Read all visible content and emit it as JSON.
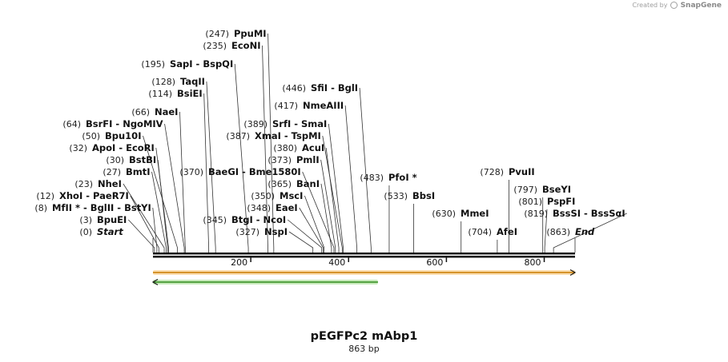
{
  "credit": {
    "prefix": "Created by",
    "brand": "SnapGene"
  },
  "map": {
    "title": "pEGFPc2 mAbp1",
    "subtitle": "863 bp",
    "length": 863,
    "scale_ticks": [
      {
        "value": 200,
        "label": "200"
      },
      {
        "value": 400,
        "label": "400"
      },
      {
        "value": 600,
        "label": "600"
      },
      {
        "value": 800,
        "label": "800"
      }
    ],
    "sites": [
      {
        "pos_label": "(0)",
        "name": "Start",
        "cut": 0,
        "italic": true
      },
      {
        "pos_label": "(3)",
        "name": "BpuEI",
        "cut": 3
      },
      {
        "pos_label": "(8)",
        "name": "MfII * - BglII - BstYI",
        "cut": 8
      },
      {
        "pos_label": "(12)",
        "name": "XhoI - PaeR7I",
        "cut": 12
      },
      {
        "pos_label": "(23)",
        "name": "NheI",
        "cut": 23
      },
      {
        "pos_label": "(27)",
        "name": "BmtI",
        "cut": 27
      },
      {
        "pos_label": "(30)",
        "name": "BstBI",
        "cut": 30
      },
      {
        "pos_label": "(32)",
        "name": "ApoI - EcoRI",
        "cut": 32
      },
      {
        "pos_label": "(50)",
        "name": "Bpu10I",
        "cut": 50
      },
      {
        "pos_label": "(64)",
        "name": "BsrFI - NgoMIV",
        "cut": 64
      },
      {
        "pos_label": "(66)",
        "name": "NaeI",
        "cut": 66
      },
      {
        "pos_label": "(114)",
        "name": "BsiEI",
        "cut": 114
      },
      {
        "pos_label": "(128)",
        "name": "TaqII",
        "cut": 128
      },
      {
        "pos_label": "(195)",
        "name": "SapI - BspQI",
        "cut": 195
      },
      {
        "pos_label": "(235)",
        "name": "EcoNI",
        "cut": 235
      },
      {
        "pos_label": "(247)",
        "name": "PpuMI",
        "cut": 247
      },
      {
        "pos_label": "(370)",
        "name": "BaeGI - Bme1580I",
        "cut": 370
      },
      {
        "pos_label": "(345)",
        "name": "BtgI - NcoI",
        "cut": 345
      },
      {
        "pos_label": "(327)",
        "name": "NspI",
        "cut": 327
      },
      {
        "pos_label": "(348)",
        "name": "EaeI",
        "cut": 348
      },
      {
        "pos_label": "(350)",
        "name": "MscI",
        "cut": 350
      },
      {
        "pos_label": "(365)",
        "name": "BanI",
        "cut": 365
      },
      {
        "pos_label": "(373)",
        "name": "PmlI",
        "cut": 373
      },
      {
        "pos_label": "(380)",
        "name": "AcuI",
        "cut": 380
      },
      {
        "pos_label": "(387)",
        "name": "XmaI - TspMI",
        "cut": 387
      },
      {
        "pos_label": "(389)",
        "name": "SrfI - SmaI",
        "cut": 389
      },
      {
        "pos_label": "(417)",
        "name": "NmeAIII",
        "cut": 417
      },
      {
        "pos_label": "(446)",
        "name": "SfiI - BglI",
        "cut": 446
      },
      {
        "pos_label": "(483)",
        "name": "PfoI *",
        "cut": 483
      },
      {
        "pos_label": "(533)",
        "name": "BbsI",
        "cut": 533
      },
      {
        "pos_label": "(630)",
        "name": "MmeI",
        "cut": 630
      },
      {
        "pos_label": "(704)",
        "name": "AfeI",
        "cut": 704
      },
      {
        "pos_label": "(728)",
        "name": "PvuII",
        "cut": 728
      },
      {
        "pos_label": "(797)",
        "name": "BseYI",
        "cut": 797
      },
      {
        "pos_label": "(801)",
        "name": "PspFI",
        "cut": 801
      },
      {
        "pos_label": "(819)",
        "name": "BssSI - BssSαI",
        "cut": 819
      },
      {
        "pos_label": "(863)",
        "name": "End",
        "cut": 863,
        "italic": true
      }
    ],
    "features": [
      {
        "name": "forward-feature",
        "start": 0,
        "end": 863,
        "direction": "forward",
        "fill": "#f4a11d",
        "stroke": "#c97c00"
      },
      {
        "name": "reverse-feature",
        "start": 0,
        "end": 460,
        "direction": "reverse",
        "fill": "#5fbf3a",
        "stroke": "#2f8a1a"
      }
    ],
    "colors": {
      "backbone": "#111111",
      "leader": "#333333"
    }
  }
}
